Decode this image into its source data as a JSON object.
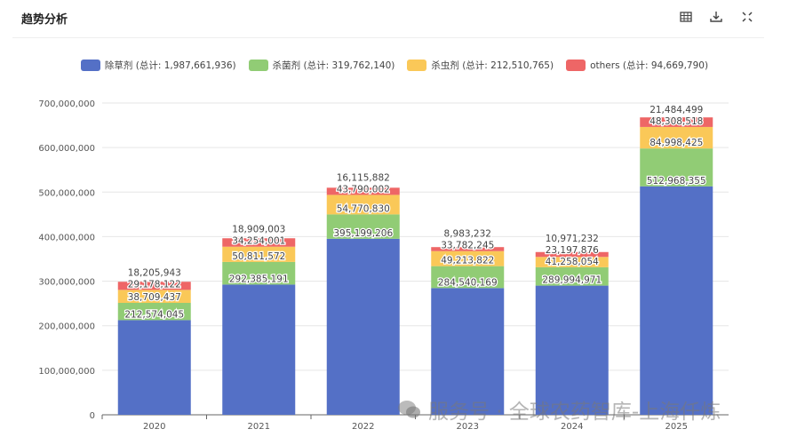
{
  "header": {
    "title": "趋势分析",
    "icons": [
      "table-icon",
      "download-icon",
      "fullscreen-icon"
    ]
  },
  "watermark": "服务号 · 全球农药智库-上海仟炼",
  "chart_data": {
    "type": "bar",
    "stacked": true,
    "categories": [
      "2020",
      "2021",
      "2022",
      "2023",
      "2024",
      "2025"
    ],
    "ylim": [
      0,
      700000000
    ],
    "yticks": [
      0,
      100000000,
      200000000,
      300000000,
      400000000,
      500000000,
      600000000,
      700000000
    ],
    "ytick_labels": [
      "0",
      "100,000,000",
      "200,000,000",
      "300,000,000",
      "400,000,000",
      "500,000,000",
      "600,000,000",
      "700,000,000"
    ],
    "grid": true,
    "legend_position": "top",
    "series": [
      {
        "name": "除草剂",
        "legend": "除草剂 (总计: 1,987,661,936)",
        "color": "#5470c6",
        "values": [
          212574045,
          292385191,
          395199206,
          284540169,
          289994971,
          512968355
        ]
      },
      {
        "name": "杀菌剂",
        "legend": "杀菌剂 (总计: 319,762,140)",
        "color": "#91cc75",
        "values": [
          38709437,
          50811572,
          54770830,
          49213822,
          41258054,
          84998425
        ]
      },
      {
        "name": "杀虫剂",
        "legend": "杀虫剂 (总计: 212,510,765)",
        "color": "#fac858",
        "values": [
          29178122,
          34254001,
          43790002,
          33782245,
          23197876,
          48308518
        ]
      },
      {
        "name": "others",
        "legend": "others (总计: 94,669,790)",
        "color": "#ee6666",
        "values": [
          18205943,
          18909003,
          16115882,
          8983232,
          10971232,
          21484499
        ]
      }
    ]
  }
}
